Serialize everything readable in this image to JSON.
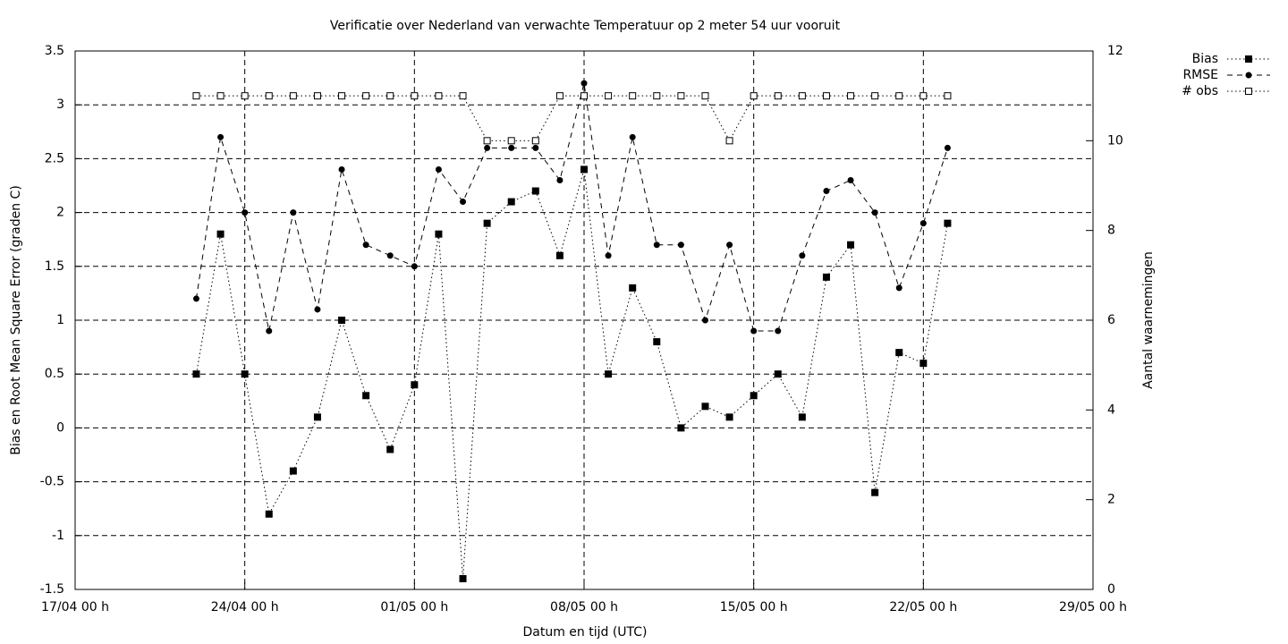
{
  "chart_data": {
    "type": "line",
    "title": "Verificatie over Nederland van verwachte Temperatuur op 2 meter 54 uur vooruit",
    "xlabel": "Datum en tijd (UTC)",
    "ylabel": "Bias en Root Mean Square Error (graden C)",
    "y2label": "Aantal waarnemingen",
    "x": [
      "22/04 00 h",
      "23/04 00 h",
      "24/04 00 h",
      "25/04 00 h",
      "26/04 00 h",
      "27/04 00 h",
      "28/04 00 h",
      "29/04 00 h",
      "30/04 00 h",
      "01/05 00 h",
      "02/05 00 h",
      "03/05 00 h",
      "04/05 00 h",
      "05/05 00 h",
      "06/05 00 h",
      "07/05 00 h",
      "08/05 00 h",
      "09/05 00 h",
      "10/05 00 h",
      "11/05 00 h",
      "12/05 00 h",
      "13/05 00 h",
      "14/05 00 h",
      "15/05 00 h",
      "16/05 00 h",
      "17/05 00 h",
      "18/05 00 h",
      "19/05 00 h",
      "20/05 00 h",
      "21/05 00 h",
      "22/05 00 h",
      "23/05 00 h"
    ],
    "series": [
      {
        "name": "Bias",
        "color": "#000000",
        "dash": "dotted",
        "marker": "filled-square",
        "values": [
          0.5,
          1.8,
          0.5,
          -0.8,
          -0.4,
          0.1,
          1.0,
          0.3,
          -0.2,
          0.4,
          1.8,
          -1.4,
          1.9,
          2.1,
          2.2,
          1.6,
          2.4,
          0.5,
          1.3,
          0.8,
          0.0,
          0.2,
          0.1,
          0.3,
          0.5,
          0.1,
          1.4,
          1.7,
          -0.6,
          0.7,
          0.6,
          1.9
        ]
      },
      {
        "name": "RMSE",
        "color": "#000000",
        "dash": "dashed",
        "marker": "filled-circle",
        "values": [
          1.2,
          2.7,
          2.0,
          0.9,
          2.0,
          1.1,
          2.4,
          1.7,
          1.6,
          1.5,
          2.4,
          2.1,
          2.6,
          2.6,
          2.6,
          2.3,
          3.2,
          1.6,
          2.7,
          1.7,
          1.7,
          1.0,
          1.7,
          0.9,
          0.9,
          1.6,
          2.2,
          2.3,
          2.0,
          1.3,
          1.9,
          2.6
        ]
      },
      {
        "name": "# obs",
        "color": "#000000",
        "dash": "dotted",
        "marker": "open-square",
        "axis": "y2",
        "values": [
          11,
          11,
          11,
          11,
          11,
          11,
          11,
          11,
          11,
          11,
          11,
          11,
          10,
          10,
          10,
          11,
          11,
          11,
          11,
          11,
          11,
          11,
          10,
          11,
          11,
          11,
          11,
          11,
          11,
          11,
          11,
          11
        ]
      }
    ],
    "xlim": [
      "17/04 00 h",
      "29/05 00 h"
    ],
    "xticks": [
      "17/04 00 h",
      "24/04 00 h",
      "01/05 00 h",
      "08/05 00 h",
      "15/05 00 h",
      "22/05 00 h",
      "29/05 00 h"
    ],
    "ylim": [
      -1.5,
      3.5
    ],
    "yticks": [
      -1.5,
      -1,
      -0.5,
      0,
      0.5,
      1,
      1.5,
      2,
      2.5,
      3,
      3.5
    ],
    "y2lim": [
      0,
      12
    ],
    "y2ticks": [
      0,
      2,
      4,
      6,
      8,
      10,
      12
    ],
    "grid": true,
    "legend": "outside-top-right"
  }
}
